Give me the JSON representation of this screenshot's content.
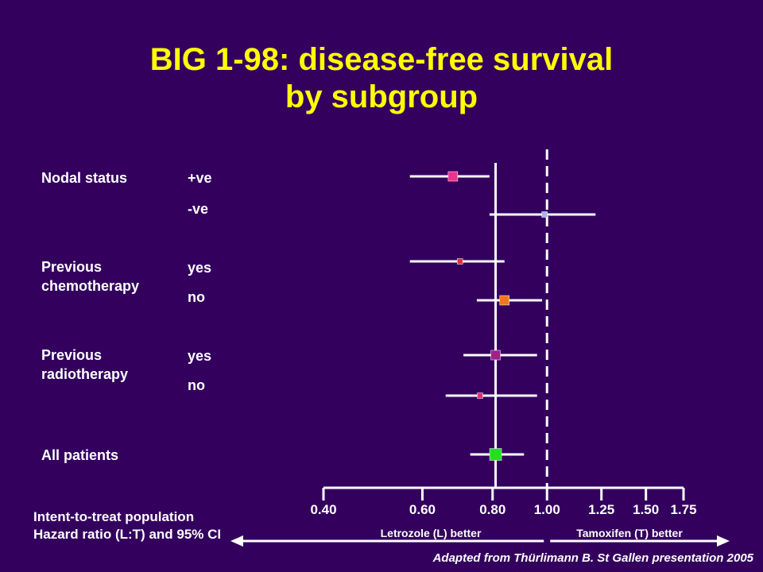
{
  "page": {
    "title_line1": "BIG 1-98: disease-free survival",
    "title_line2": "by subgroup",
    "footnote_line1": "Intent-to-treat population",
    "footnote_line2": "Hazard ratio (L:T) and 95% CI",
    "source": "Adapted from Thürlimann B. St Gallen presentation 2005",
    "colors": {
      "background": "#33005e",
      "title": "#ffff00",
      "text": "#ffffff"
    }
  },
  "subgroups": [
    {
      "name": "Nodal status",
      "levels": [
        "+ve",
        "-ve"
      ]
    },
    {
      "name": "Previous chemotherapy",
      "levels": [
        "yes",
        "no"
      ]
    },
    {
      "name": "Previous radiotherapy",
      "levels": [
        "yes",
        "no"
      ]
    },
    {
      "name": "All patients",
      "levels": []
    }
  ],
  "chart_data": {
    "type": "forest",
    "x_scale": "log",
    "xlim": [
      0.4,
      1.75
    ],
    "ticks": [
      0.4,
      0.6,
      0.8,
      1.0,
      1.25,
      1.5,
      1.75
    ],
    "tick_labels": [
      "0.40",
      "0.60",
      "0.80",
      "1.00",
      "1.25",
      "1.50",
      "1.75"
    ],
    "reference_lines": [
      {
        "value": 1.0,
        "style": "dashed"
      },
      {
        "value": 0.81,
        "style": "solid"
      }
    ],
    "direction_labels": {
      "left": "Letrozole (L) better",
      "right": "Tamoxifen (T) better"
    },
    "rows": [
      {
        "label": "Nodal status +ve",
        "hr": 0.68,
        "ci": [
          0.57,
          0.79
        ],
        "color": "#e8348f",
        "size": "large"
      },
      {
        "label": "Nodal status -ve",
        "hr": 0.99,
        "ci": [
          0.79,
          1.22
        ],
        "color": "#aab4e8",
        "size": "small"
      },
      {
        "label": "Previous chemotherapy yes",
        "hr": 0.7,
        "ci": [
          0.57,
          0.84
        ],
        "color": "#e0303a",
        "size": "small"
      },
      {
        "label": "Previous chemotherapy no",
        "hr": 0.84,
        "ci": [
          0.75,
          0.98
        ],
        "color": "#f07820",
        "size": "large"
      },
      {
        "label": "Previous radiotherapy yes",
        "hr": 0.81,
        "ci": [
          0.71,
          0.96
        ],
        "color": "#a02088",
        "size": "large"
      },
      {
        "label": "Previous radiotherapy no",
        "hr": 0.76,
        "ci": [
          0.66,
          0.96
        ],
        "color": "#e03070",
        "size": "small"
      },
      {
        "label": "All patients",
        "hr": 0.81,
        "ci": [
          0.73,
          0.91
        ],
        "color": "#20e020",
        "size": "xlarge"
      }
    ]
  }
}
